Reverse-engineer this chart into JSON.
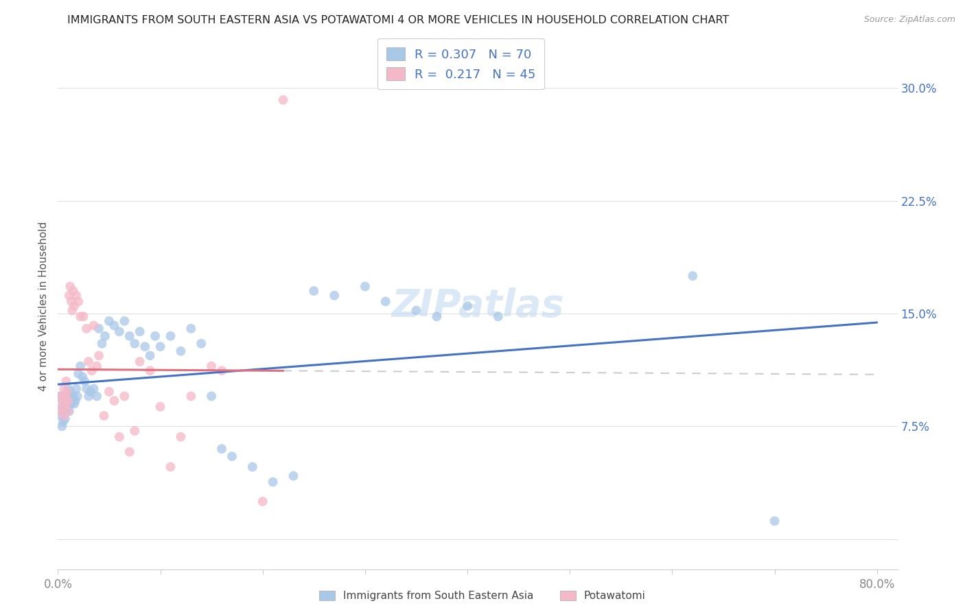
{
  "title": "IMMIGRANTS FROM SOUTH EASTERN ASIA VS POTAWATOMI 4 OR MORE VEHICLES IN HOUSEHOLD CORRELATION CHART",
  "source": "Source: ZipAtlas.com",
  "ylabel": "4 or more Vehicles in Household",
  "xlim": [
    0.0,
    0.82
  ],
  "ylim": [
    -0.02,
    0.33
  ],
  "xticks": [
    0.0,
    0.1,
    0.2,
    0.3,
    0.4,
    0.5,
    0.6,
    0.7,
    0.8
  ],
  "yticks": [
    0.0,
    0.075,
    0.15,
    0.225,
    0.3
  ],
  "yticklabels": [
    "",
    "7.5%",
    "15.0%",
    "22.5%",
    "30.0%"
  ],
  "blue_color": "#a8c8e8",
  "pink_color": "#f5b8c8",
  "blue_line_color": "#4472c4",
  "pink_line_color": "#e07080",
  "gray_dash_color": "#cccccc",
  "legend_R1": "0.307",
  "legend_N1": "70",
  "legend_R2": "0.217",
  "legend_N2": "45",
  "legend_text_color": "#4472c4",
  "watermark": "ZIPatlas",
  "label1": "Immigrants from South Eastern Asia",
  "label2": "Potawatomi",
  "title_color": "#222222",
  "axis_label_color": "#555555",
  "tick_color": "#888888",
  "blue_x": [
    0.002,
    0.003,
    0.004,
    0.004,
    0.005,
    0.005,
    0.006,
    0.006,
    0.007,
    0.007,
    0.008,
    0.008,
    0.009,
    0.009,
    0.01,
    0.01,
    0.011,
    0.011,
    0.012,
    0.012,
    0.013,
    0.014,
    0.015,
    0.016,
    0.017,
    0.018,
    0.019,
    0.02,
    0.022,
    0.024,
    0.026,
    0.028,
    0.03,
    0.032,
    0.035,
    0.038,
    0.04,
    0.043,
    0.046,
    0.05,
    0.055,
    0.06,
    0.065,
    0.07,
    0.075,
    0.08,
    0.085,
    0.09,
    0.095,
    0.1,
    0.11,
    0.12,
    0.13,
    0.14,
    0.15,
    0.16,
    0.17,
    0.19,
    0.21,
    0.23,
    0.25,
    0.27,
    0.3,
    0.32,
    0.35,
    0.37,
    0.4,
    0.43,
    0.62,
    0.7
  ],
  "blue_y": [
    0.095,
    0.082,
    0.075,
    0.088,
    0.078,
    0.092,
    0.085,
    0.095,
    0.08,
    0.09,
    0.085,
    0.092,
    0.088,
    0.095,
    0.09,
    0.1,
    0.095,
    0.085,
    0.092,
    0.098,
    0.09,
    0.095,
    0.095,
    0.09,
    0.092,
    0.1,
    0.095,
    0.11,
    0.115,
    0.108,
    0.105,
    0.1,
    0.095,
    0.098,
    0.1,
    0.095,
    0.14,
    0.13,
    0.135,
    0.145,
    0.142,
    0.138,
    0.145,
    0.135,
    0.13,
    0.138,
    0.128,
    0.122,
    0.135,
    0.128,
    0.135,
    0.125,
    0.14,
    0.13,
    0.095,
    0.06,
    0.055,
    0.048,
    0.038,
    0.042,
    0.165,
    0.162,
    0.168,
    0.158,
    0.152,
    0.148,
    0.155,
    0.148,
    0.175,
    0.012
  ],
  "pink_x": [
    0.002,
    0.003,
    0.004,
    0.005,
    0.006,
    0.006,
    0.007,
    0.008,
    0.008,
    0.009,
    0.01,
    0.01,
    0.011,
    0.012,
    0.013,
    0.014,
    0.015,
    0.016,
    0.018,
    0.02,
    0.022,
    0.025,
    0.028,
    0.03,
    0.033,
    0.035,
    0.038,
    0.04,
    0.045,
    0.05,
    0.055,
    0.06,
    0.065,
    0.07,
    0.075,
    0.08,
    0.09,
    0.1,
    0.11,
    0.12,
    0.13,
    0.15,
    0.16,
    0.2,
    0.22
  ],
  "pink_y": [
    0.085,
    0.095,
    0.092,
    0.088,
    0.082,
    0.1,
    0.095,
    0.09,
    0.105,
    0.098,
    0.085,
    0.092,
    0.162,
    0.168,
    0.158,
    0.152,
    0.165,
    0.155,
    0.162,
    0.158,
    0.148,
    0.148,
    0.14,
    0.118,
    0.112,
    0.142,
    0.115,
    0.122,
    0.082,
    0.098,
    0.092,
    0.068,
    0.095,
    0.058,
    0.072,
    0.118,
    0.112,
    0.088,
    0.048,
    0.068,
    0.095,
    0.115,
    0.112,
    0.025,
    0.292
  ]
}
